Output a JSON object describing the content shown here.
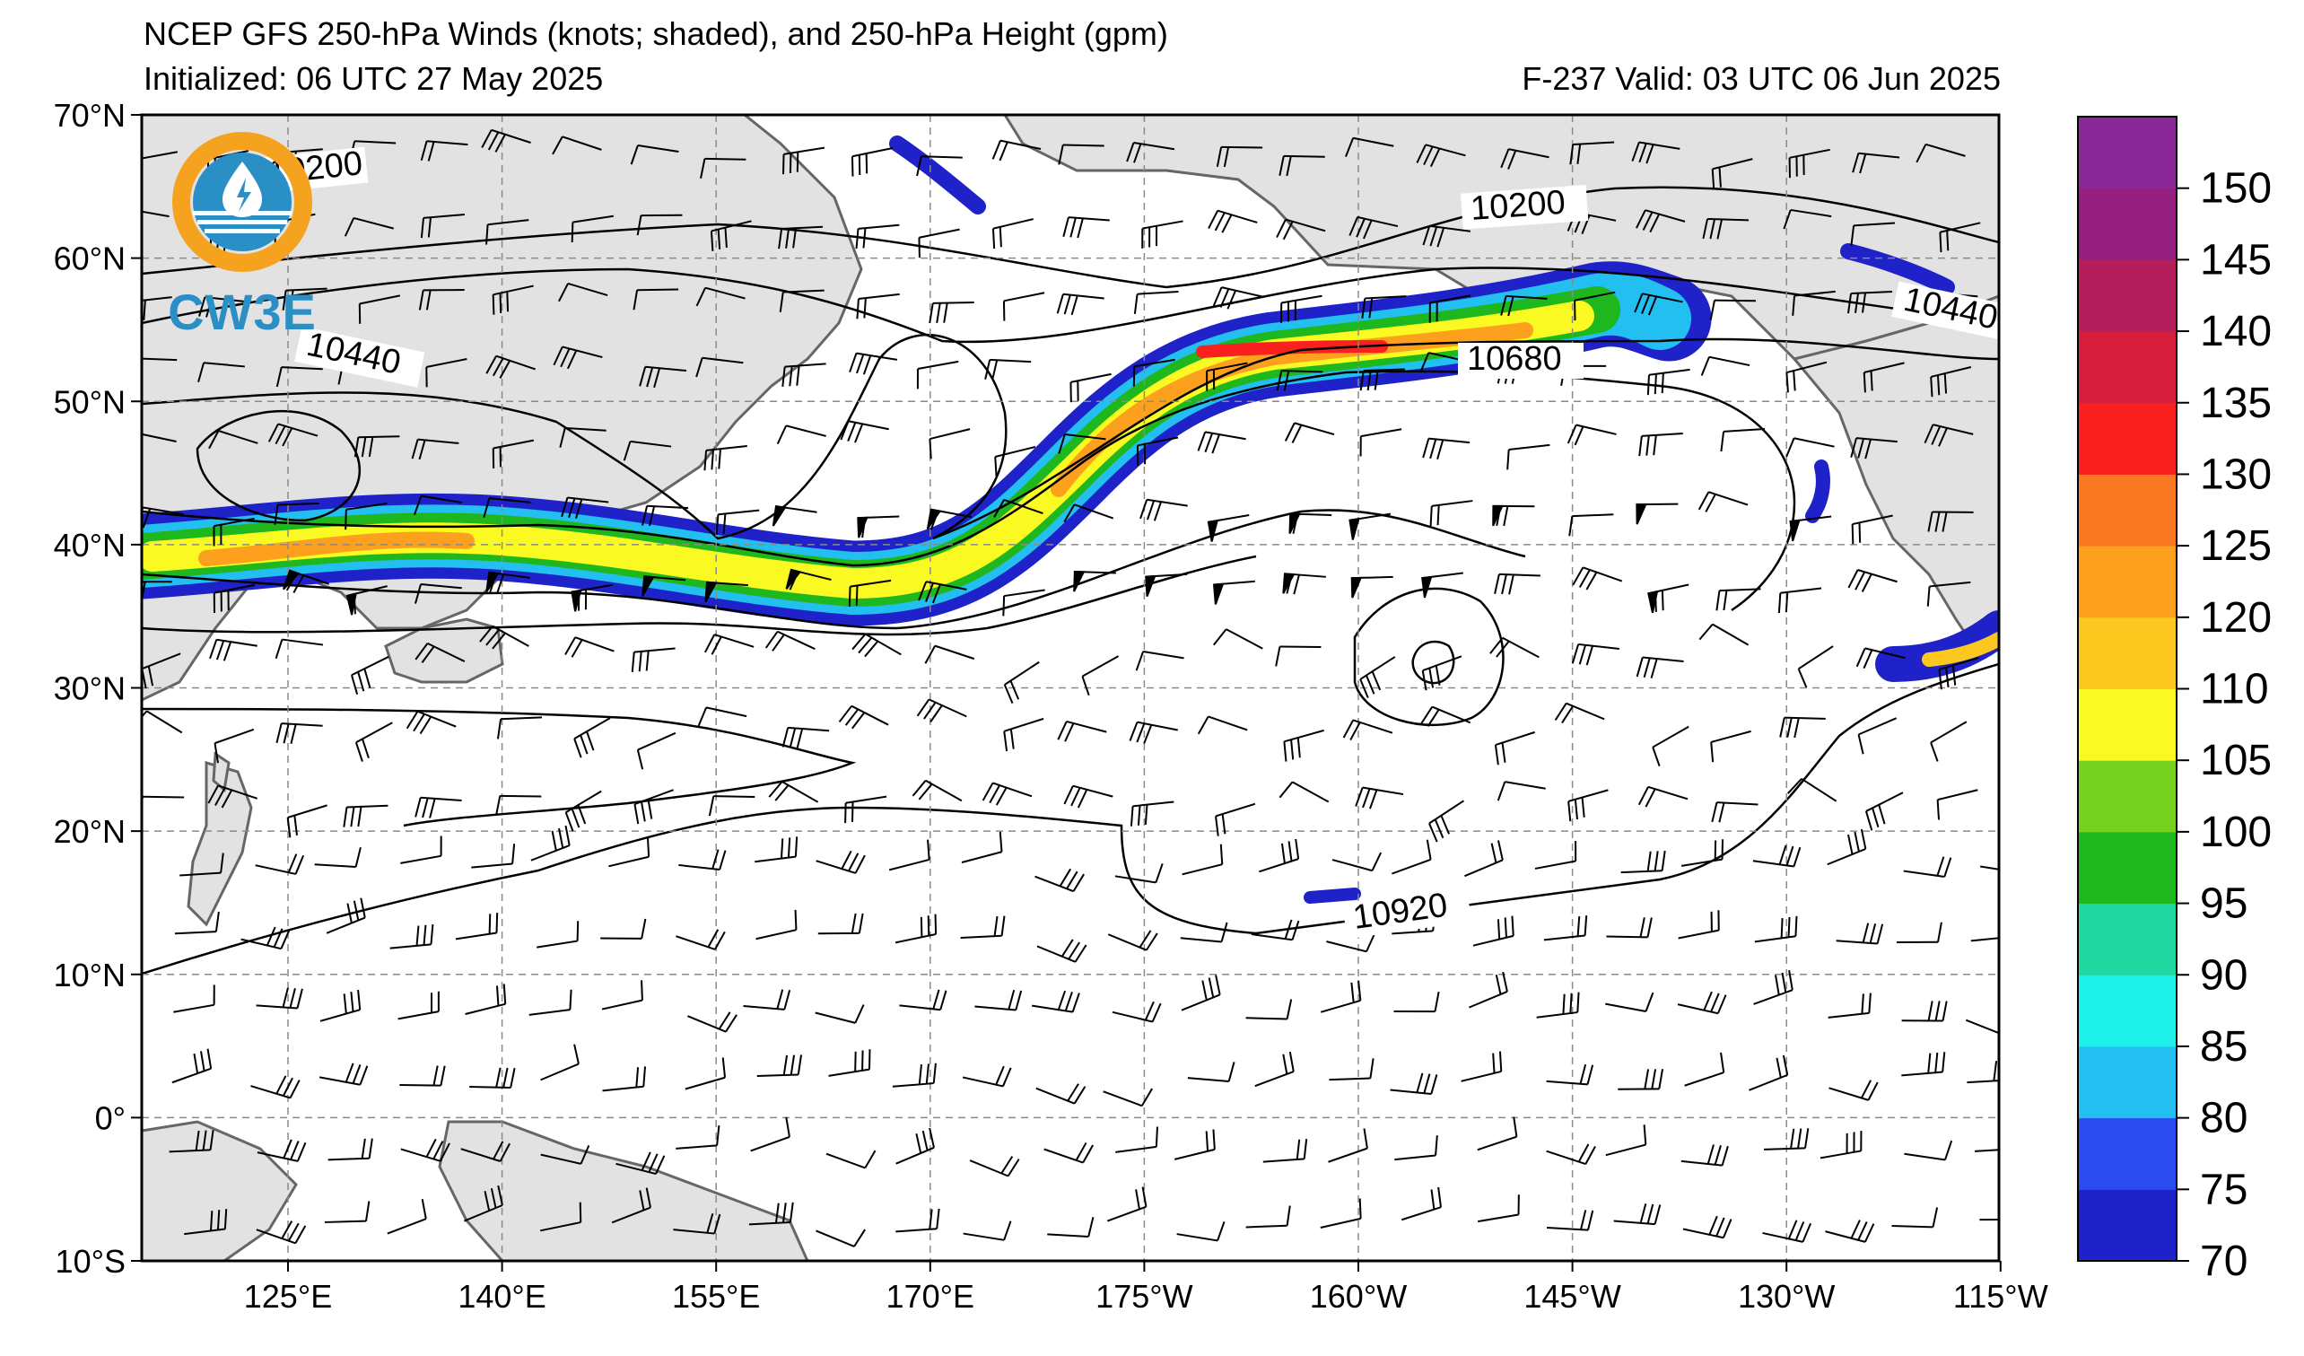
{
  "header": {
    "title": "NCEP GFS 250-hPa Winds (knots; shaded), and 250-hPa Height (gpm)",
    "initialized": "Initialized: 06 UTC 27 May 2025",
    "valid": "F-237  Valid: 03 UTC 06 Jun 2025"
  },
  "logo": {
    "text": "CW3E",
    "icon": "cw3e-logo-icon"
  },
  "map": {
    "lat_labels": [
      "70°N",
      "60°N",
      "50°N",
      "40°N",
      "30°N",
      "20°N",
      "10°N",
      "0°",
      "10°S"
    ],
    "lon_labels": [
      "125°E",
      "140°E",
      "155°E",
      "170°E",
      "175°W",
      "160°W",
      "145°W",
      "130°W",
      "115°W"
    ],
    "contour_labels": [
      "10200",
      "10200",
      "10440",
      "10440",
      "10680",
      "10920"
    ]
  },
  "colorbar": {
    "ticks": [
      "70",
      "75",
      "80",
      "85",
      "90",
      "95",
      "100",
      "105",
      "110",
      "120",
      "125",
      "130",
      "135",
      "140",
      "145",
      "150"
    ],
    "colors": [
      "#1f22c8",
      "#2a4bf0",
      "#22bff0",
      "#1ef0ea",
      "#20d9a0",
      "#1eb81e",
      "#76d21e",
      "#fafa22",
      "#fcc820",
      "#fca01e",
      "#fa7822",
      "#fa2020",
      "#d61e3c",
      "#b41e5a",
      "#962080",
      "#8a2898"
    ]
  },
  "colors": {
    "land": "#e2e2e2",
    "coast": "#666666",
    "grid": "#8a8a8a"
  }
}
